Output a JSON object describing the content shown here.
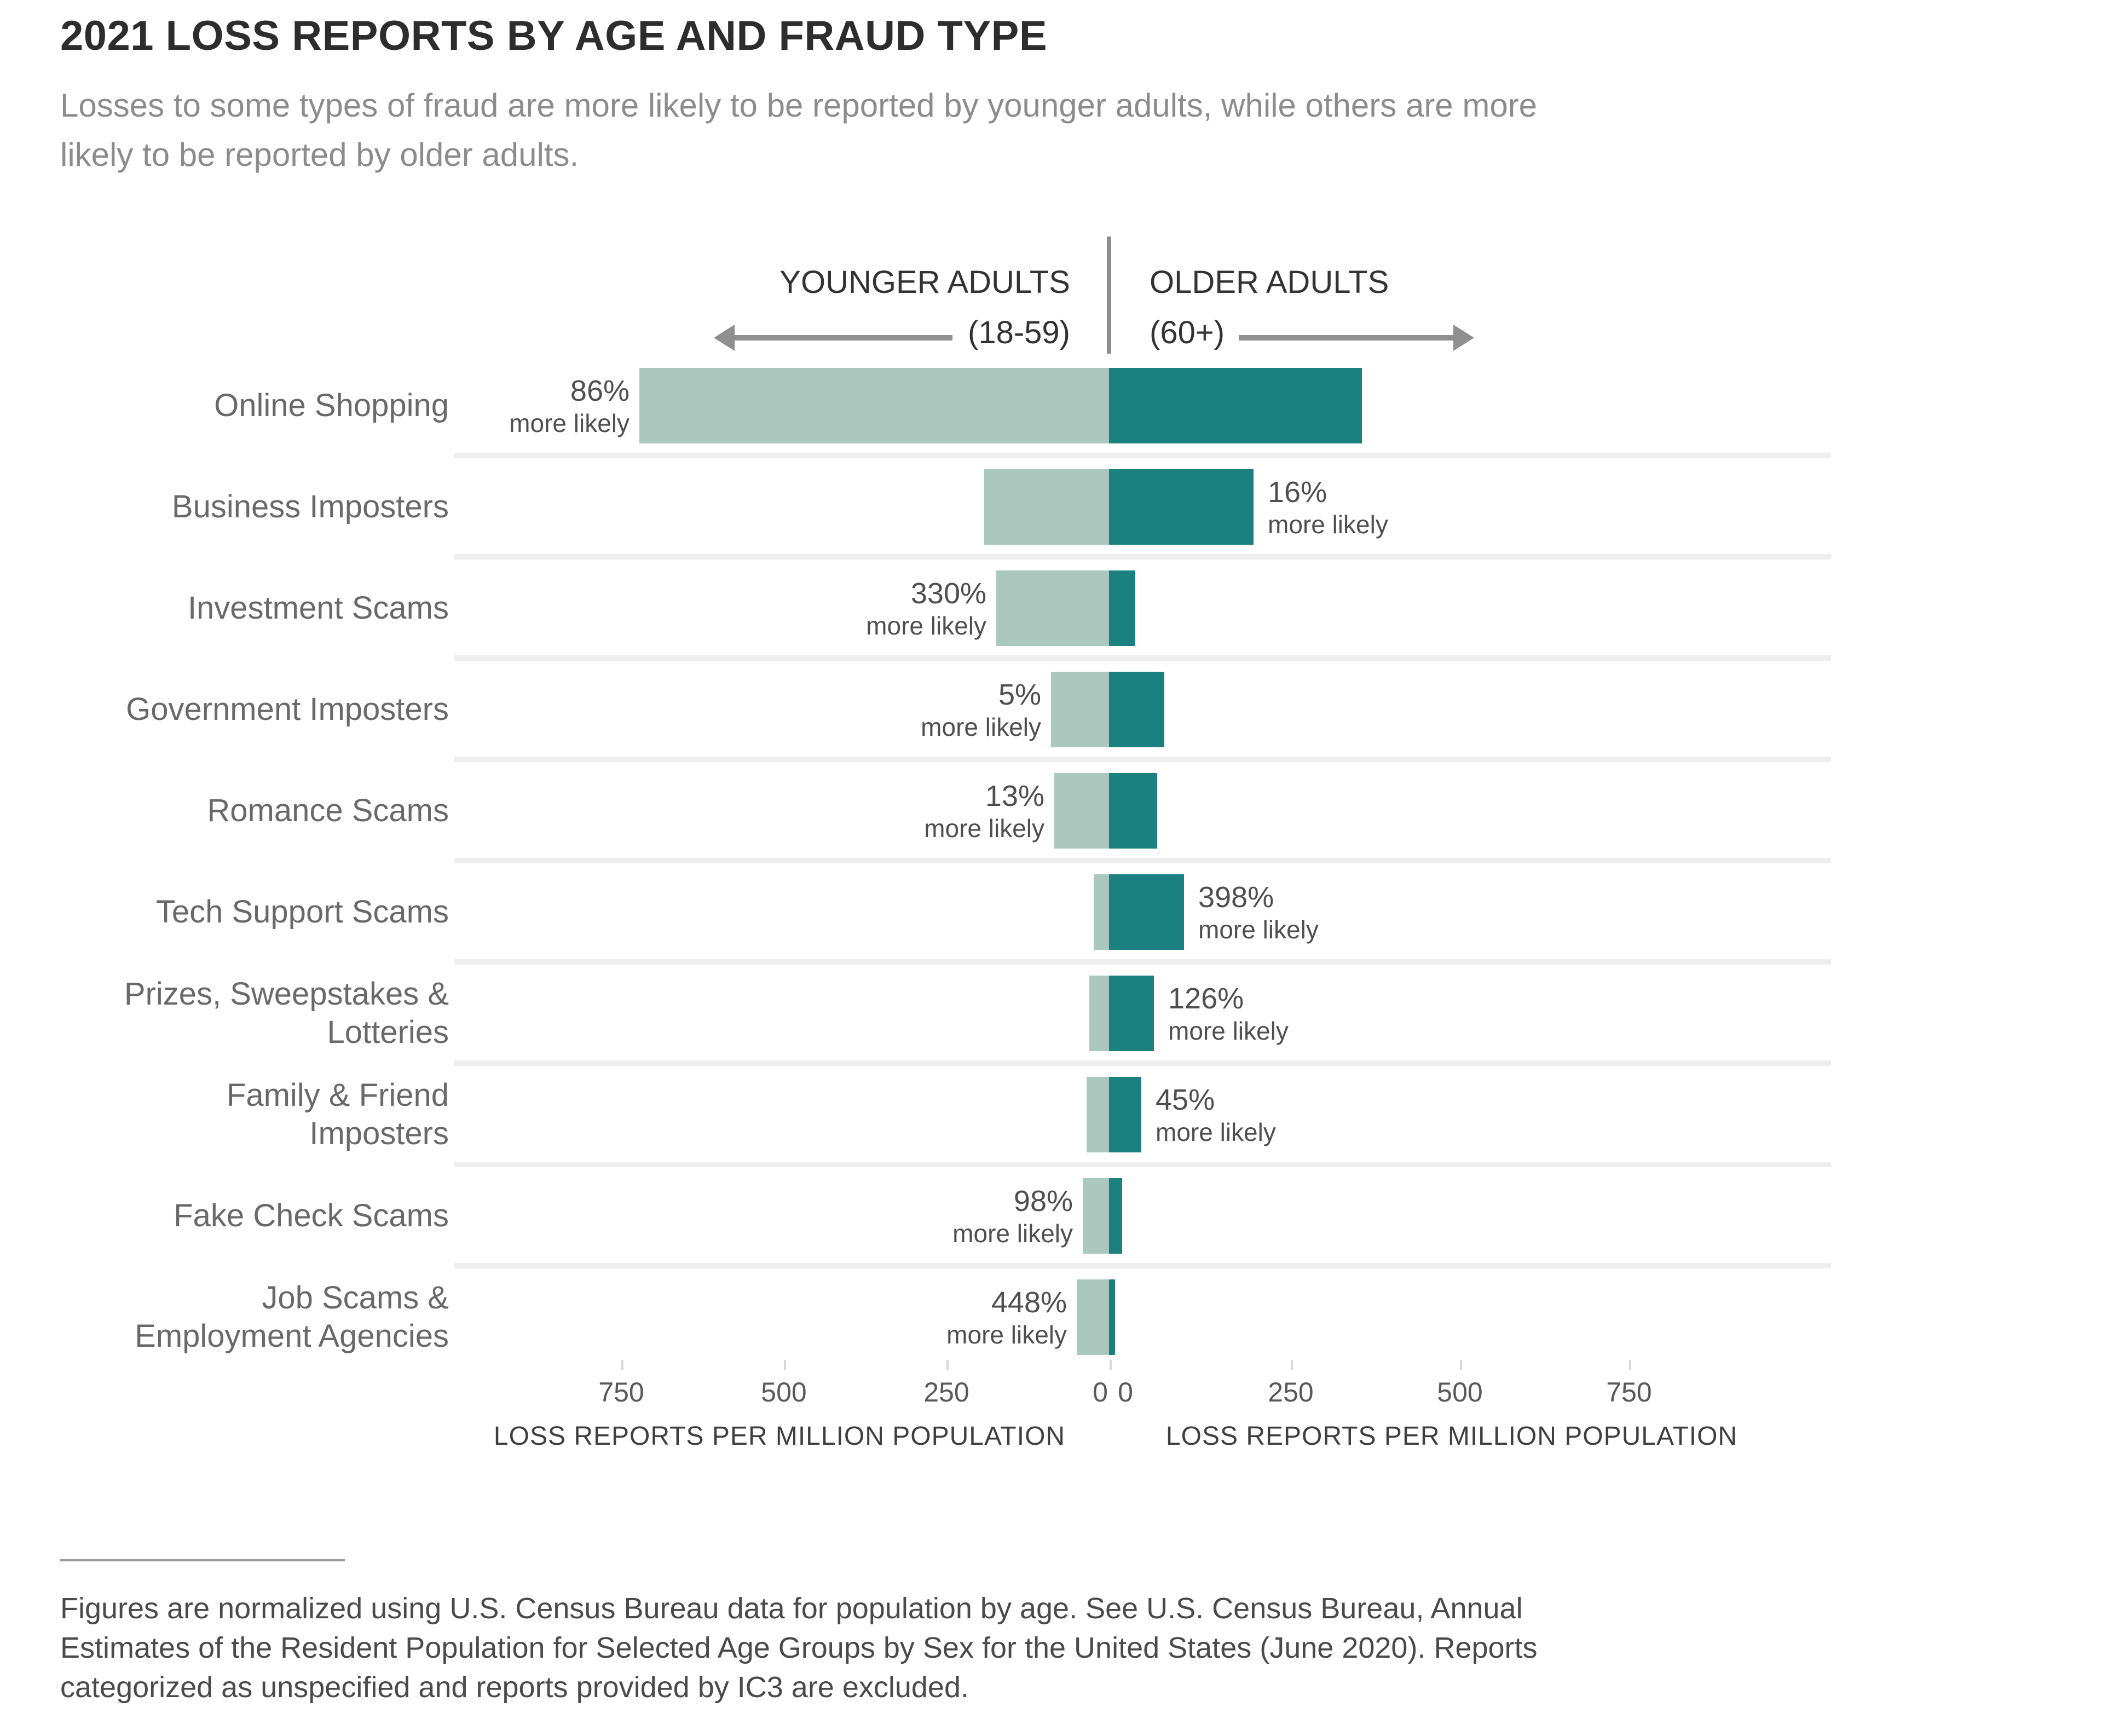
{
  "title": "2021 LOSS REPORTS BY AGE AND FRAUD TYPE",
  "subtitle": "Losses to some types of fraud are more likely to be reported by younger adults, while others are more\nlikely to be reported by older adults.",
  "header": {
    "younger_label": "YOUNGER ADULTS",
    "younger_range": "(18-59)",
    "older_label": "OLDER ADULTS",
    "older_range": "(60+)"
  },
  "axis": {
    "left_title": "LOSS REPORTS PER MILLION POPULATION",
    "right_title": "LOSS REPORTS PER MILLION POPULATION",
    "left_ticks": [
      "750",
      "500",
      "250",
      "0"
    ],
    "right_ticks": [
      "0",
      "250",
      "500",
      "750"
    ]
  },
  "footnote": "Figures are normalized using U.S. Census Bureau data for population by age. See U.S. Census Bureau, Annual\nEstimates of the Resident Population for Selected Age Groups by Sex for the United States (June 2020). Reports\ncategorized as unspecified and reports provided by IC3 are excluded.",
  "colors": {
    "younger_bar": "#abc8bf",
    "older_bar": "#1a8180",
    "arrow_gray": "#8f8f8f",
    "row_separator": "#eeeeee",
    "title_text": "#2d2d2d",
    "subtitle_text": "#8c8c8c",
    "category_text": "#696969",
    "annotation_text": "#4f4f4f",
    "tick_text": "#595959",
    "axis_title_text": "#3f3f3f"
  },
  "chart_data": {
    "type": "bar",
    "variant": "diverging-horizontal",
    "title": "2021 LOSS REPORTS BY AGE AND FRAUD TYPE",
    "x_unit": "loss reports per million population",
    "x_ticks_each_side": [
      0,
      250,
      500,
      750
    ],
    "xlim_each_side": [
      0,
      950
    ],
    "grid": "row-separators-only",
    "legend_position": "top-header-arrows",
    "series": [
      {
        "name": "Younger Adults (18-59)",
        "color": "#abc8bf",
        "direction": "left"
      },
      {
        "name": "Older Adults (60+)",
        "color": "#1a8180",
        "direction": "right"
      }
    ],
    "rows": [
      {
        "category": "Online Shopping",
        "younger": 715,
        "older": 385,
        "annotation": "86%",
        "annotation_sub": "more likely",
        "annotation_side": "left"
      },
      {
        "category": "Business Imposters",
        "younger": 190,
        "older": 220,
        "annotation": "16%",
        "annotation_sub": "more likely",
        "annotation_side": "right"
      },
      {
        "category": "Investment Scams",
        "younger": 172,
        "older": 40,
        "annotation": "330%",
        "annotation_sub": "more likely",
        "annotation_side": "left"
      },
      {
        "category": "Government Imposters",
        "younger": 88,
        "older": 84,
        "annotation": "5%",
        "annotation_sub": "more likely",
        "annotation_side": "left"
      },
      {
        "category": "Romance Scams",
        "younger": 83,
        "older": 73,
        "annotation": "13%",
        "annotation_sub": "more likely",
        "annotation_side": "left"
      },
      {
        "category": "Tech Support Scams",
        "younger": 23,
        "older": 114,
        "annotation": "398%",
        "annotation_sub": "more likely",
        "annotation_side": "right"
      },
      {
        "category": "Prizes, Sweepstakes &\nLotteries",
        "younger": 30,
        "older": 68,
        "annotation": "126%",
        "annotation_sub": "more likely",
        "annotation_side": "right"
      },
      {
        "category": "Family & Friend\nImposters",
        "younger": 34,
        "older": 49,
        "annotation": "45%",
        "annotation_sub": "more likely",
        "annotation_side": "right"
      },
      {
        "category": "Fake Check Scams",
        "younger": 40,
        "older": 20,
        "annotation": "98%",
        "annotation_sub": "more likely",
        "annotation_side": "left"
      },
      {
        "category": "Job Scams &\nEmployment Agencies",
        "younger": 49,
        "older": 9,
        "annotation": "448%",
        "annotation_sub": "more likely",
        "annotation_side": "left"
      }
    ]
  }
}
